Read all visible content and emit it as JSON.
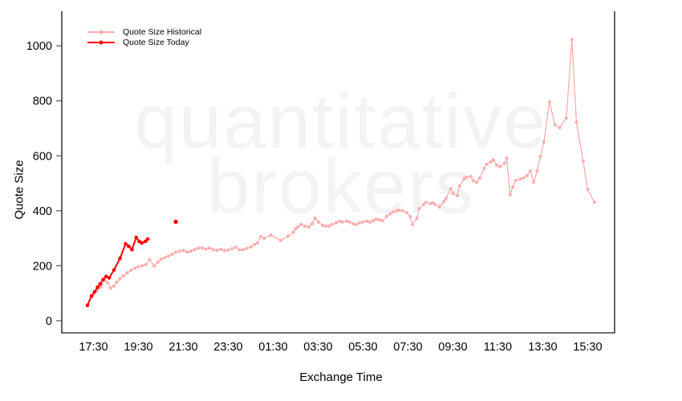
{
  "watermark": {
    "line1": "quantitative",
    "line2": "brokers",
    "color": "#f3f3f3"
  },
  "legend": {
    "items": [
      {
        "label": "Quote Size Historical",
        "color": "#ffadad"
      },
      {
        "label": "Quote Size Today",
        "color": "#ff0000"
      }
    ]
  },
  "chart_data": {
    "type": "line",
    "title": "",
    "xlabel": "Exchange Time",
    "ylabel": "Quote Size",
    "grid": "off",
    "legend_position": "top-left",
    "frame": "left-right-bottom",
    "axis_color": "#3c3c3c",
    "y_ticks": [
      0,
      200,
      400,
      600,
      800,
      1000
    ],
    "x_ticklabels": [
      "17:30",
      "19:30",
      "21:30",
      "23:30",
      "01:30",
      "03:30",
      "05:30",
      "07:30",
      "09:30",
      "11:30",
      "13:30",
      "15:30"
    ],
    "x_major_interval_hours": 2,
    "x_minor_interval_hours": 0.5,
    "x_minor_start": "17:00",
    "x_minor_end": "16:30",
    "x_domain_hours_from_1730": [
      -1.41,
      23.2
    ],
    "y_domain": [
      -44,
      1126
    ],
    "series": [
      {
        "name": "Quote Size Historical",
        "color": "#ffadad",
        "line_width": 1.3,
        "marker_radius": 2.0,
        "draw_line": true,
        "points": [
          [
            "17:30",
            95
          ],
          [
            "17:40",
            110
          ],
          [
            "17:50",
            123
          ],
          [
            "18:00",
            147
          ],
          [
            "18:08",
            138
          ],
          [
            "18:16",
            119
          ],
          [
            "18:24",
            126
          ],
          [
            "18:32",
            140
          ],
          [
            "18:40",
            152
          ],
          [
            "18:50",
            163
          ],
          [
            "19:00",
            174
          ],
          [
            "19:10",
            184
          ],
          [
            "19:20",
            191
          ],
          [
            "19:30",
            197
          ],
          [
            "19:40",
            200
          ],
          [
            "19:50",
            204
          ],
          [
            "20:00",
            223
          ],
          [
            "20:12",
            199
          ],
          [
            "20:22",
            213
          ],
          [
            "20:30",
            224
          ],
          [
            "20:40",
            229
          ],
          [
            "20:50",
            235
          ],
          [
            "21:00",
            242
          ],
          [
            "21:10",
            250
          ],
          [
            "21:20",
            253
          ],
          [
            "21:30",
            256
          ],
          [
            "21:40",
            250
          ],
          [
            "21:50",
            253
          ],
          [
            "22:00",
            259
          ],
          [
            "22:10",
            264
          ],
          [
            "22:20",
            265
          ],
          [
            "22:30",
            261
          ],
          [
            "22:40",
            264
          ],
          [
            "22:50",
            259
          ],
          [
            "23:00",
            256
          ],
          [
            "23:10",
            260
          ],
          [
            "23:20",
            256
          ],
          [
            "23:30",
            257
          ],
          [
            "23:40",
            262
          ],
          [
            "23:50",
            268
          ],
          [
            "00:00",
            257
          ],
          [
            "00:10",
            258
          ],
          [
            "00:20",
            263
          ],
          [
            "00:30",
            269
          ],
          [
            "00:40",
            277
          ],
          [
            "00:48",
            283
          ],
          [
            "00:57",
            306
          ],
          [
            "01:06",
            300
          ],
          [
            "01:24",
            312
          ],
          [
            "01:50",
            292
          ],
          [
            "02:10",
            308
          ],
          [
            "02:24",
            321
          ],
          [
            "02:30",
            335
          ],
          [
            "02:36",
            341
          ],
          [
            "02:44",
            350
          ],
          [
            "02:55",
            344
          ],
          [
            "03:05",
            341
          ],
          [
            "03:14",
            353
          ],
          [
            "03:22",
            373
          ],
          [
            "03:31",
            359
          ],
          [
            "03:42",
            347
          ],
          [
            "03:50",
            344
          ],
          [
            "03:59",
            344
          ],
          [
            "04:07",
            350
          ],
          [
            "04:18",
            356
          ],
          [
            "04:27",
            362
          ],
          [
            "04:35",
            359
          ],
          [
            "04:46",
            362
          ],
          [
            "04:54",
            359
          ],
          [
            "05:03",
            353
          ],
          [
            "05:12",
            350
          ],
          [
            "05:20",
            356
          ],
          [
            "05:29",
            359
          ],
          [
            "05:40",
            362
          ],
          [
            "05:48",
            359
          ],
          [
            "05:57",
            364
          ],
          [
            "06:05",
            370
          ],
          [
            "06:14",
            367
          ],
          [
            "06:22",
            364
          ],
          [
            "06:33",
            379
          ],
          [
            "06:42",
            388
          ],
          [
            "06:50",
            396
          ],
          [
            "07:00",
            400
          ],
          [
            "07:06",
            402
          ],
          [
            "07:15",
            400
          ],
          [
            "07:27",
            394
          ],
          [
            "07:36",
            379
          ],
          [
            "07:42",
            350
          ],
          [
            "07:54",
            373
          ],
          [
            "08:00",
            408
          ],
          [
            "08:12",
            423
          ],
          [
            "08:18",
            431
          ],
          [
            "08:30",
            426
          ],
          [
            "08:36",
            429
          ],
          [
            "08:42",
            423
          ],
          [
            "08:54",
            414
          ],
          [
            "09:06",
            434
          ],
          [
            "09:12",
            446
          ],
          [
            "09:24",
            481
          ],
          [
            "09:30",
            464
          ],
          [
            "09:42",
            455
          ],
          [
            "09:48",
            490
          ],
          [
            "10:00",
            516
          ],
          [
            "10:06",
            522
          ],
          [
            "10:18",
            525
          ],
          [
            "10:24",
            510
          ],
          [
            "10:33",
            504
          ],
          [
            "10:42",
            519
          ],
          [
            "10:54",
            554
          ],
          [
            "11:00",
            569
          ],
          [
            "11:12",
            578
          ],
          [
            "11:18",
            586
          ],
          [
            "11:27",
            566
          ],
          [
            "11:36",
            560
          ],
          [
            "11:48",
            572
          ],
          [
            "11:54",
            592
          ],
          [
            "12:03",
            458
          ],
          [
            "12:10",
            487
          ],
          [
            "12:18",
            510
          ],
          [
            "12:30",
            516
          ],
          [
            "12:39",
            519
          ],
          [
            "12:48",
            528
          ],
          [
            "12:57",
            545
          ],
          [
            "13:06",
            504
          ],
          [
            "13:15",
            545
          ],
          [
            "13:24",
            598
          ],
          [
            "13:33",
            650
          ],
          [
            "13:48",
            796
          ],
          [
            "14:03",
            712
          ],
          [
            "14:15",
            702
          ],
          [
            "14:33",
            737
          ],
          [
            "14:48",
            1023
          ],
          [
            "15:00",
            723
          ],
          [
            "15:18",
            580
          ],
          [
            "15:30",
            478
          ],
          [
            "15:48",
            431
          ]
        ]
      },
      {
        "name": "Quote Size Today",
        "color": "#ff0000",
        "line_width": 2.0,
        "marker_radius": 2.3,
        "draw_line": true,
        "points": [
          [
            "17:14",
            56
          ],
          [
            "17:25",
            90
          ],
          [
            "17:33",
            105
          ],
          [
            "17:41",
            122
          ],
          [
            "17:48",
            134
          ],
          [
            "17:56",
            150
          ],
          [
            "18:04",
            161
          ],
          [
            "18:12",
            156
          ],
          [
            "18:25",
            185
          ],
          [
            "18:41",
            227
          ],
          [
            "18:56",
            280
          ],
          [
            "19:04",
            271
          ],
          [
            "19:13",
            259
          ],
          [
            "19:24",
            303
          ],
          [
            "19:32",
            289
          ],
          [
            "19:39",
            283
          ],
          [
            "19:49",
            289
          ],
          [
            "19:55",
            297
          ]
        ]
      },
      {
        "name": "Quote Size Today (isolated point)",
        "color": "#ff0000",
        "line_width": 0,
        "marker_radius": 2.7,
        "draw_line": false,
        "points": [
          [
            "21:10",
            360
          ]
        ]
      }
    ]
  }
}
